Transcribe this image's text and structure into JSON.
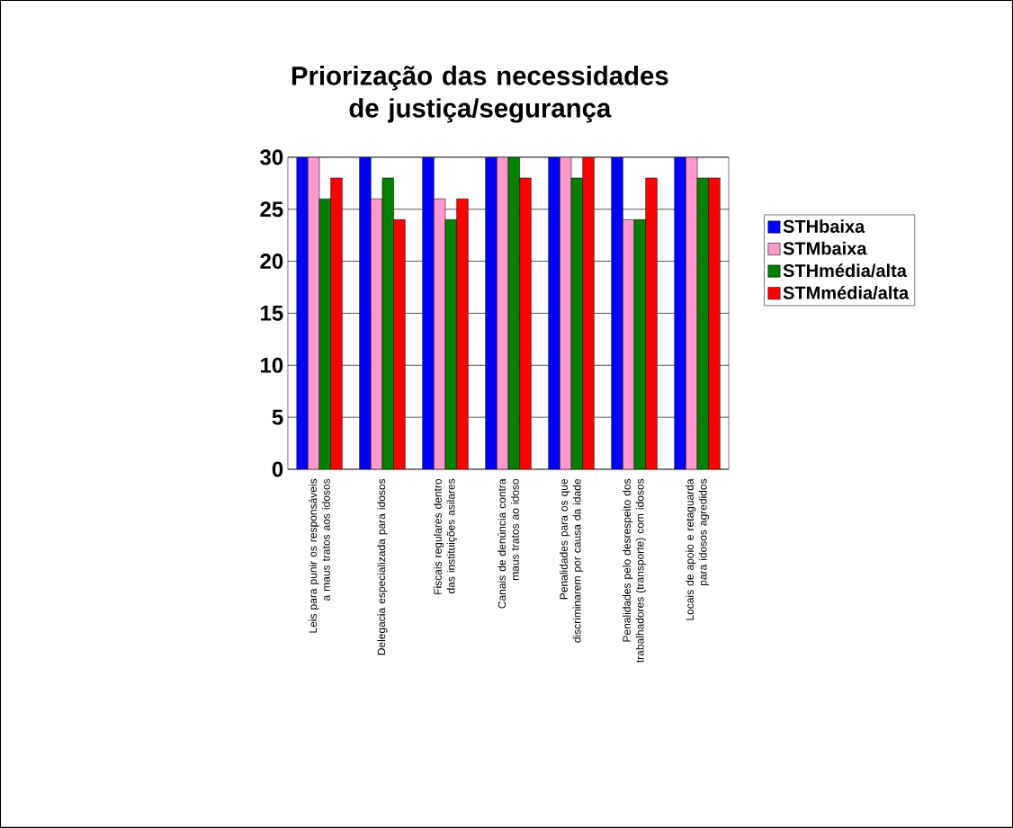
{
  "chart_data": {
    "type": "bar",
    "title": "Priorização das necessidades de justiça/segurança",
    "categories": [
      "Leis para punir os responsáveis a maus tratos aos idosos",
      "Delegacia especializada para idosos",
      "Fiscais regulares dentro das instituições asilares",
      "Canais de denúncia contra maus tratos ao idoso",
      "Penalidades para os que discriminarem por causa da idade",
      "Penalidades pelo desrespeito dos trabalhadores (transporte) com idosos",
      "Locais de apoio e retaguarda para idosos agredidos"
    ],
    "series": [
      {
        "name": "STHbaixa",
        "color": "#0000ff",
        "values": [
          30,
          30,
          30,
          30,
          30,
          30,
          30
        ]
      },
      {
        "name": "STMbaixa",
        "color": "#ff99cc",
        "values": [
          30,
          26,
          26,
          30,
          30,
          24,
          30
        ]
      },
      {
        "name": "STHmédia/alta",
        "color": "#008000",
        "values": [
          26,
          28,
          24,
          30,
          28,
          24,
          28
        ]
      },
      {
        "name": "STMmédia/alta",
        "color": "#ff0000",
        "values": [
          28,
          24,
          26,
          28,
          30,
          28,
          28
        ]
      }
    ],
    "ylim": [
      0,
      30
    ],
    "yticks": [
      0,
      5,
      10,
      15,
      20,
      25,
      30
    ],
    "grid": "y",
    "legend": "right"
  }
}
